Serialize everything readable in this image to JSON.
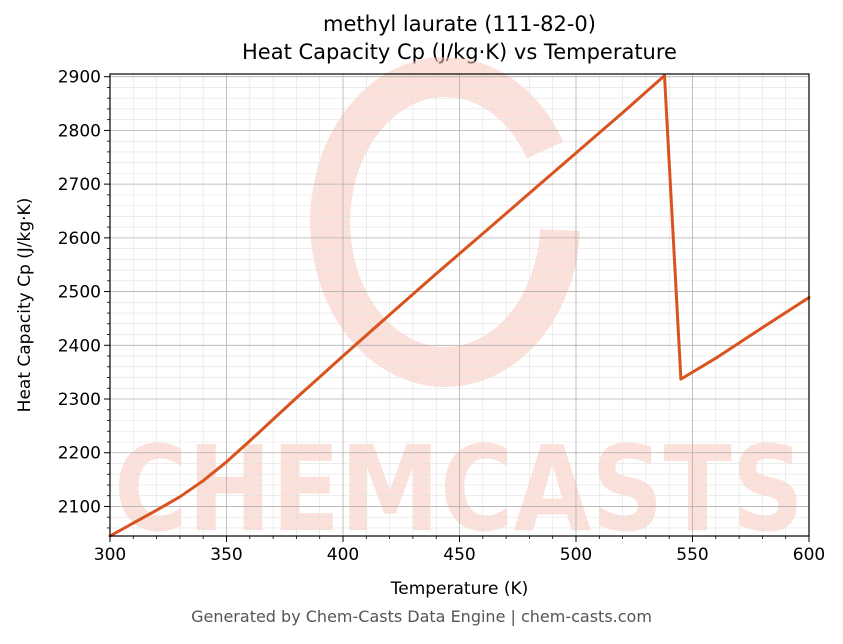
{
  "chart_data": {
    "type": "line",
    "title_line1": "methyl laurate (111-82-0)",
    "title_line2": "Heat Capacity Cp (J/kg·K) vs Temperature",
    "xlabel": "Temperature (K)",
    "ylabel": "Heat Capacity Cp (J/kg·K)",
    "xlim": [
      300,
      600
    ],
    "ylim": [
      2045,
      2905
    ],
    "x_ticks": [
      300,
      350,
      400,
      450,
      500,
      550,
      600
    ],
    "y_ticks": [
      2100,
      2200,
      2300,
      2400,
      2500,
      2600,
      2700,
      2800,
      2900
    ],
    "grid": true,
    "series": [
      {
        "color": "#d9531e",
        "x": [
          300,
          310,
          320,
          330,
          340,
          350,
          360,
          370,
          380,
          390,
          400,
          420,
          440,
          460,
          480,
          500,
          520,
          538,
          545,
          560,
          580,
          600
        ],
        "y": [
          2045,
          2069,
          2093,
          2118,
          2148,
          2183,
          2222,
          2262,
          2302,
          2341,
          2380,
          2457,
          2533,
          2608,
          2683,
          2758,
          2833,
          2902,
          2337,
          2376,
          2433,
          2489
        ]
      }
    ]
  },
  "watermark": {
    "text": "CHEMCASTS",
    "color": "#f9c9bd"
  },
  "footer": "Generated by Chem-Casts Data Engine | chem-casts.com"
}
